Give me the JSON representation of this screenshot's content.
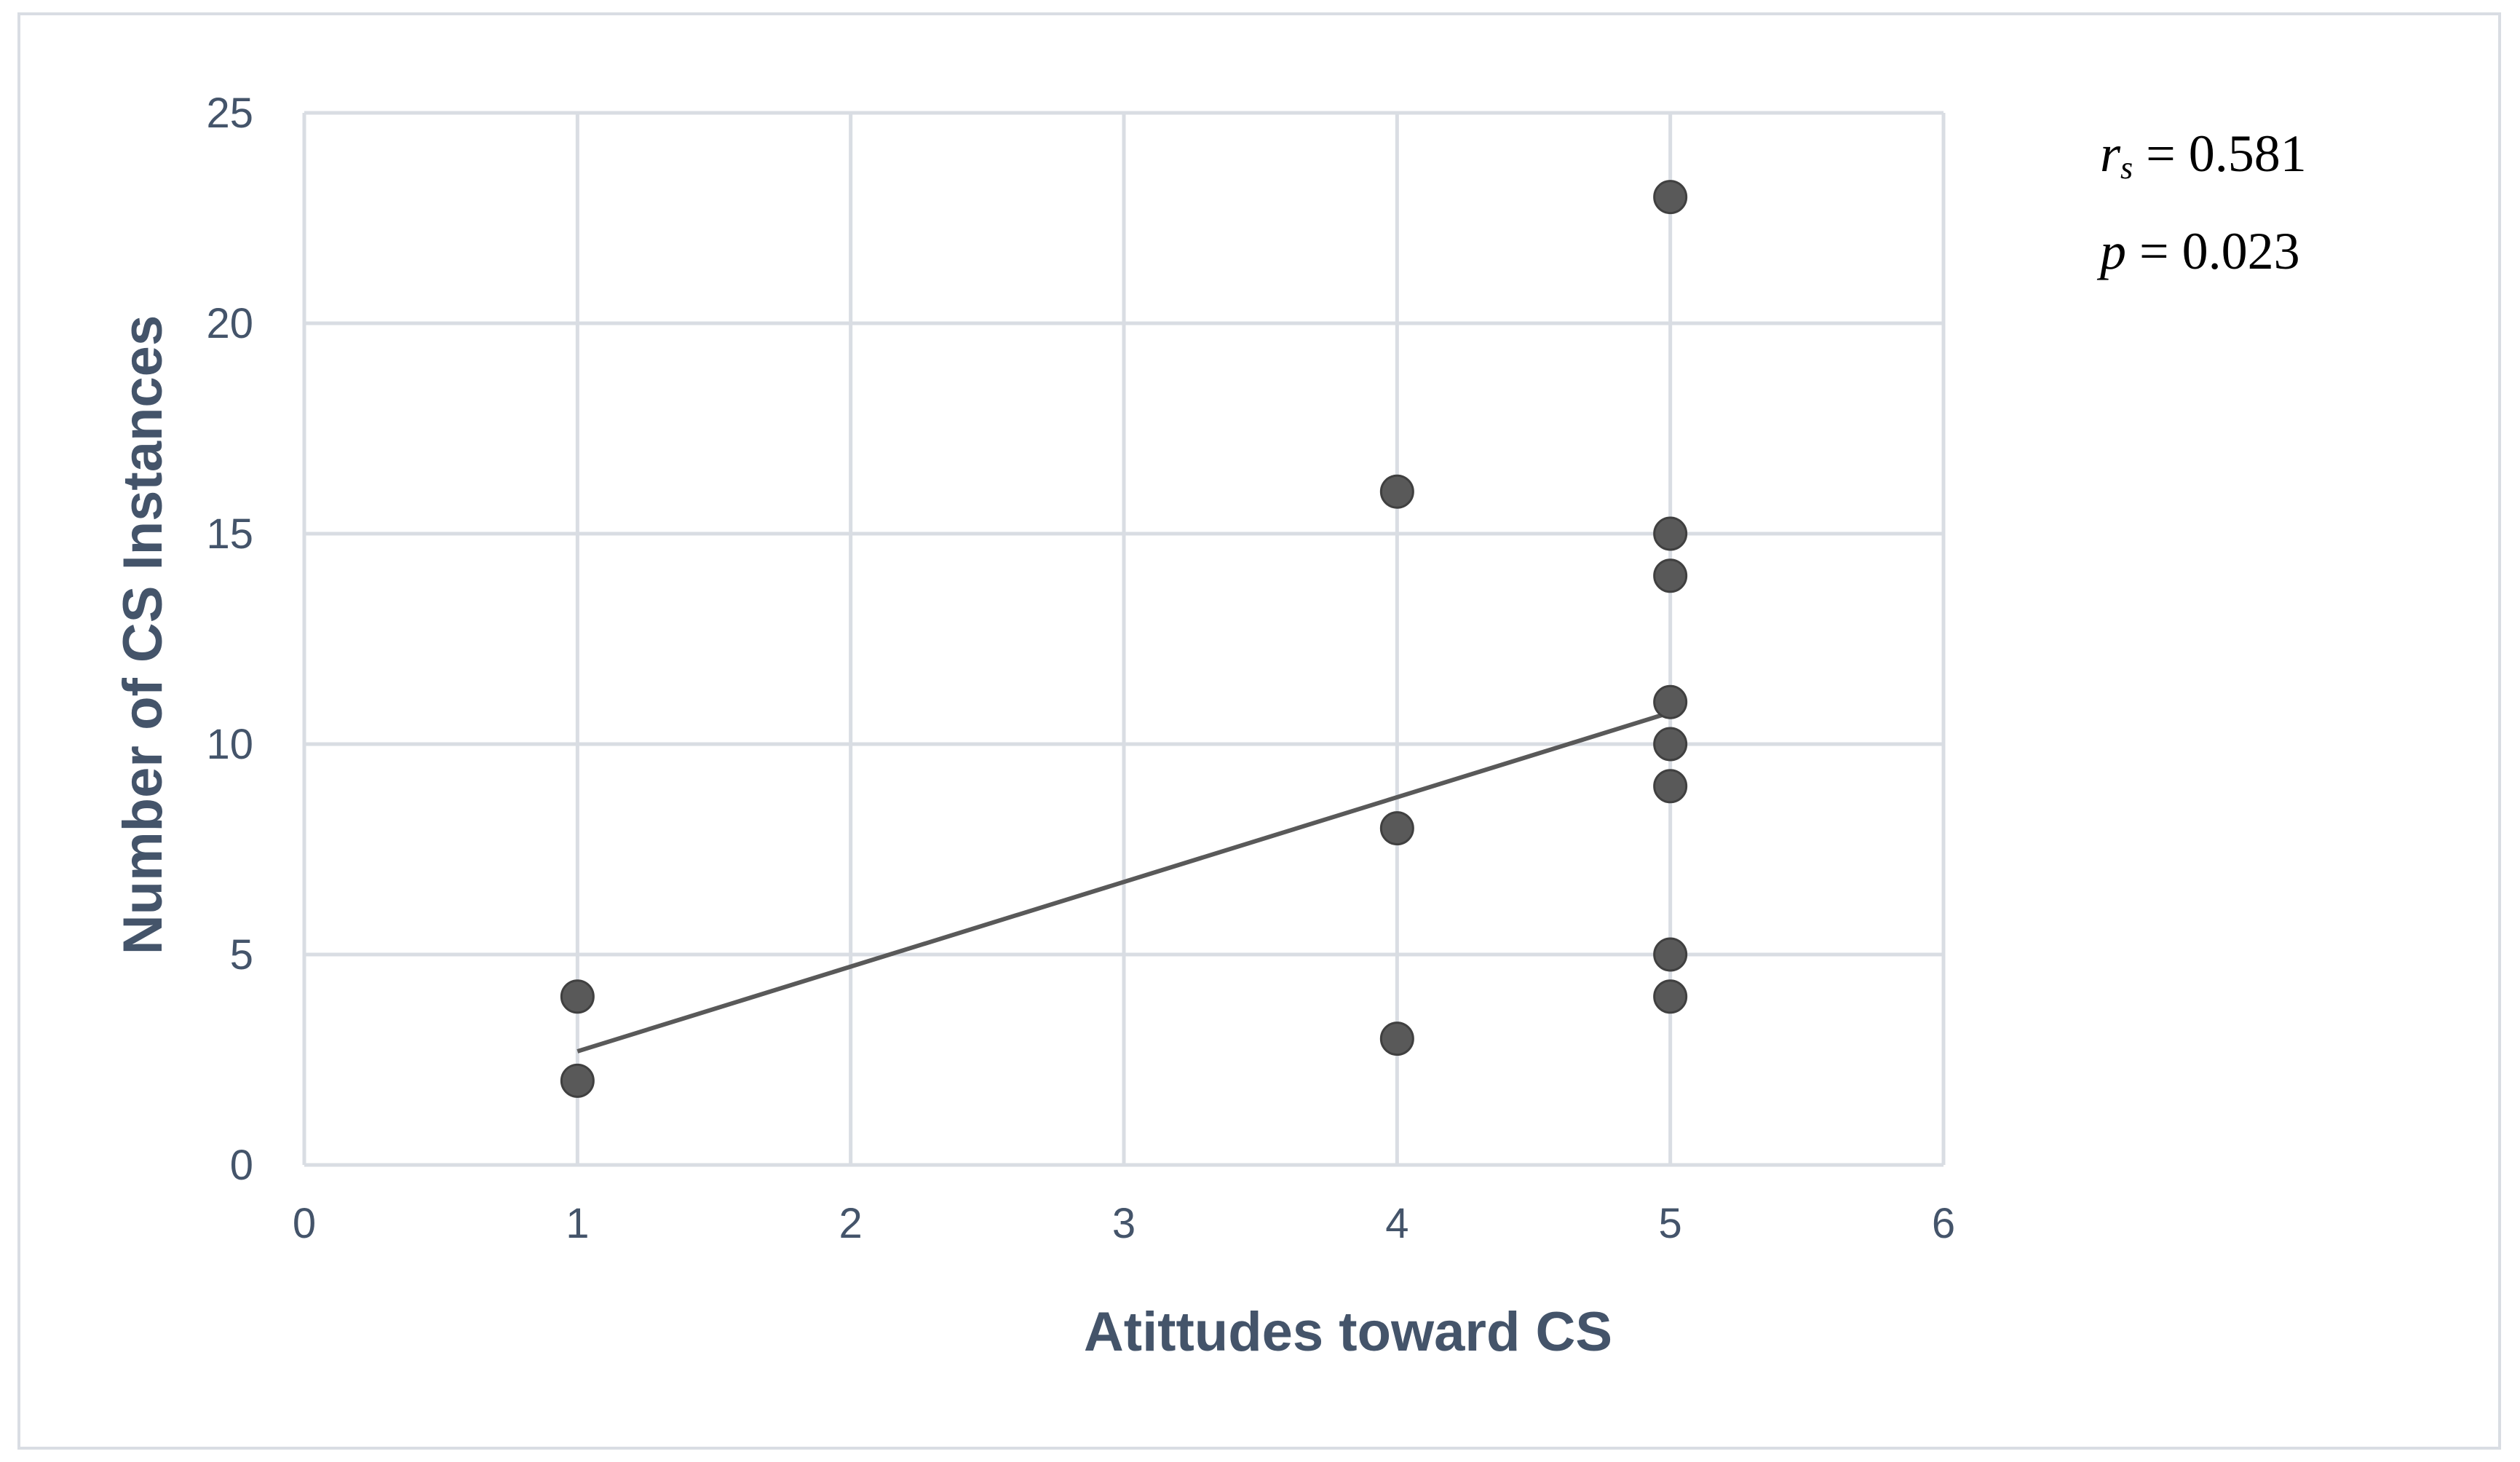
{
  "chart_data": {
    "type": "scatter",
    "title": "",
    "xlabel": "Atittudes toward CS",
    "ylabel": "Number of CS Instances",
    "xlim": [
      0,
      6
    ],
    "ylim": [
      0,
      25
    ],
    "xticks": [
      "0",
      "1",
      "2",
      "3",
      "4",
      "5",
      "6"
    ],
    "yticks": [
      "0",
      "5",
      "10",
      "15",
      "20",
      "25"
    ],
    "grid": true,
    "legend": "none",
    "points": [
      {
        "x": 1,
        "y": 4
      },
      {
        "x": 1,
        "y": 2
      },
      {
        "x": 4,
        "y": 16
      },
      {
        "x": 4,
        "y": 8
      },
      {
        "x": 4,
        "y": 3
      },
      {
        "x": 5,
        "y": 23
      },
      {
        "x": 5,
        "y": 15
      },
      {
        "x": 5,
        "y": 14
      },
      {
        "x": 5,
        "y": 11
      },
      {
        "x": 5,
        "y": 10
      },
      {
        "x": 5,
        "y": 9
      },
      {
        "x": 5,
        "y": 5
      },
      {
        "x": 5,
        "y": 4
      }
    ],
    "trendline": {
      "x": [
        1,
        5
      ],
      "y": [
        2.7,
        10.75
      ]
    },
    "annotations": {
      "rs_symbol": "r",
      "rs_subscript": "s",
      "rs_value": " = 0.581",
      "p_symbol": "p",
      "p_value": " = 0.023"
    },
    "colors": {
      "marker": "#595959",
      "trendline": "#595959",
      "grid": "#d9dde3",
      "axis_text": "#44546a"
    }
  }
}
